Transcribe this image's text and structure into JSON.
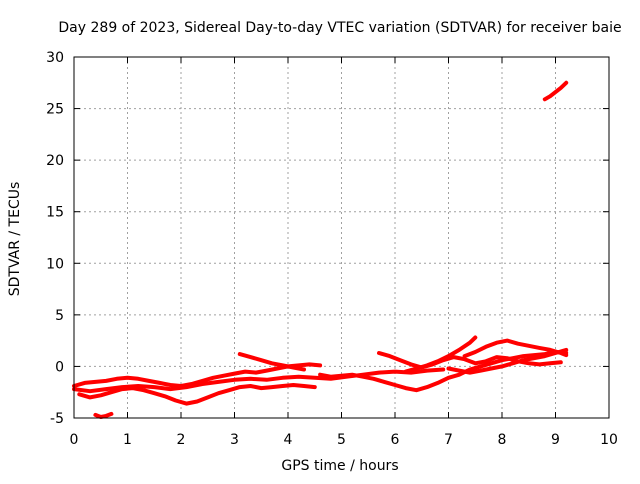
{
  "chart_data": {
    "type": "line",
    "title": "Day 289 of 2023, Sidereal Day-to-day VTEC variation (SDTVAR) for receiver baie",
    "xlabel": "GPS time / hours",
    "ylabel": "SDTVAR / TECUs",
    "xlim": [
      0,
      10
    ],
    "ylim": [
      -5,
      30
    ],
    "x_ticks": [
      0,
      1,
      2,
      3,
      4,
      5,
      6,
      7,
      8,
      9,
      10
    ],
    "y_ticks": [
      -5,
      0,
      5,
      10,
      15,
      20,
      25,
      30
    ],
    "grid": true,
    "line_color": "#ff0000",
    "series": [
      {
        "x": [
          0.0,
          0.2,
          0.4,
          0.6,
          0.8,
          1.0,
          1.2,
          1.4,
          1.6,
          1.8,
          2.0,
          2.2,
          2.4,
          2.6,
          2.8,
          3.0,
          3.2,
          3.4,
          3.6,
          3.8,
          4.0,
          4.2,
          4.4,
          4.6
        ],
        "y": [
          -1.9,
          -1.6,
          -1.5,
          -1.4,
          -1.2,
          -1.1,
          -1.2,
          -1.4,
          -1.6,
          -1.8,
          -1.9,
          -1.7,
          -1.4,
          -1.1,
          -0.9,
          -0.7,
          -0.5,
          -0.6,
          -0.4,
          -0.2,
          0.0,
          0.1,
          0.2,
          0.1
        ]
      },
      {
        "x": [
          0.1,
          0.3,
          0.5,
          0.7,
          0.9,
          1.1,
          1.3,
          1.5,
          1.7,
          1.9,
          2.1,
          2.3,
          2.5,
          2.7,
          2.9,
          3.1,
          3.3,
          3.5,
          3.7,
          3.9,
          4.1,
          4.3,
          4.5
        ],
        "y": [
          -2.7,
          -3.0,
          -2.8,
          -2.5,
          -2.2,
          -2.1,
          -2.3,
          -2.6,
          -2.9,
          -3.3,
          -3.6,
          -3.4,
          -3.0,
          -2.6,
          -2.3,
          -2.0,
          -1.9,
          -2.1,
          -2.0,
          -1.9,
          -1.8,
          -1.9,
          -2.0
        ]
      },
      {
        "x": [
          0.4,
          0.5,
          0.6,
          0.7
        ],
        "y": [
          -4.7,
          -4.9,
          -4.8,
          -4.6
        ]
      },
      {
        "x": [
          0.0,
          0.3,
          0.6,
          0.9,
          1.2,
          1.5,
          1.8,
          2.1,
          2.4,
          2.7,
          3.0,
          3.3,
          3.6,
          3.9,
          4.2,
          4.5,
          4.8,
          5.1,
          5.4,
          5.7,
          6.0,
          6.3,
          6.6,
          6.9
        ],
        "y": [
          -2.2,
          -2.4,
          -2.2,
          -2.0,
          -1.9,
          -2.0,
          -2.2,
          -2.0,
          -1.7,
          -1.5,
          -1.3,
          -1.2,
          -1.3,
          -1.1,
          -1.0,
          -1.1,
          -1.2,
          -1.0,
          -0.8,
          -0.6,
          -0.5,
          -0.6,
          -0.4,
          -0.3
        ]
      },
      {
        "x": [
          3.1,
          3.3,
          3.5,
          3.7,
          3.9,
          4.1,
          4.3
        ],
        "y": [
          1.2,
          0.9,
          0.6,
          0.3,
          0.1,
          -0.1,
          -0.3
        ]
      },
      {
        "x": [
          4.6,
          4.8,
          5.0,
          5.2,
          5.4,
          5.6,
          5.8,
          6.0,
          6.2,
          6.4,
          6.6,
          6.8,
          7.0,
          7.2,
          7.4,
          7.6,
          7.8,
          8.0,
          8.2,
          8.4,
          8.6,
          8.8,
          9.0,
          9.2
        ],
        "y": [
          -0.8,
          -1.0,
          -0.9,
          -0.8,
          -1.0,
          -1.2,
          -1.5,
          -1.8,
          -2.1,
          -2.3,
          -2.0,
          -1.6,
          -1.1,
          -0.8,
          -0.3,
          0.0,
          0.3,
          0.6,
          0.8,
          1.0,
          1.1,
          1.2,
          1.4,
          1.3
        ]
      },
      {
        "x": [
          5.7,
          5.9,
          6.1,
          6.3,
          6.5,
          6.7,
          6.9,
          7.1,
          7.3,
          7.5,
          7.7,
          7.9,
          8.1,
          8.3,
          8.5,
          8.7,
          8.9,
          9.1
        ],
        "y": [
          1.3,
          1.0,
          0.6,
          0.2,
          -0.1,
          0.2,
          0.6,
          0.9,
          0.7,
          0.3,
          0.5,
          0.9,
          0.8,
          0.5,
          0.3,
          0.2,
          0.3,
          0.4
        ]
      },
      {
        "x": [
          6.2,
          6.4,
          6.6,
          6.8,
          7.0,
          7.2,
          7.4,
          7.5
        ],
        "y": [
          -0.5,
          -0.2,
          0.1,
          0.5,
          1.0,
          1.6,
          2.3,
          2.8
        ]
      },
      {
        "x": [
          7.3,
          7.5,
          7.7,
          7.9,
          8.1,
          8.3,
          8.5,
          8.7,
          8.9,
          9.1,
          9.2
        ],
        "y": [
          1.0,
          1.4,
          1.9,
          2.3,
          2.5,
          2.2,
          2.0,
          1.8,
          1.6,
          1.3,
          1.1
        ]
      },
      {
        "x": [
          7.0,
          7.2,
          7.4,
          7.6,
          7.8,
          8.0,
          8.2,
          8.4,
          8.6,
          8.8,
          9.0,
          9.2
        ],
        "y": [
          -0.2,
          -0.4,
          -0.6,
          -0.4,
          -0.2,
          0.0,
          0.3,
          0.6,
          0.8,
          1.0,
          1.3,
          1.6
        ]
      },
      {
        "x": [
          8.8,
          8.9,
          9.0,
          9.1,
          9.2
        ],
        "y": [
          25.9,
          26.2,
          26.6,
          27.0,
          27.5
        ]
      }
    ]
  }
}
